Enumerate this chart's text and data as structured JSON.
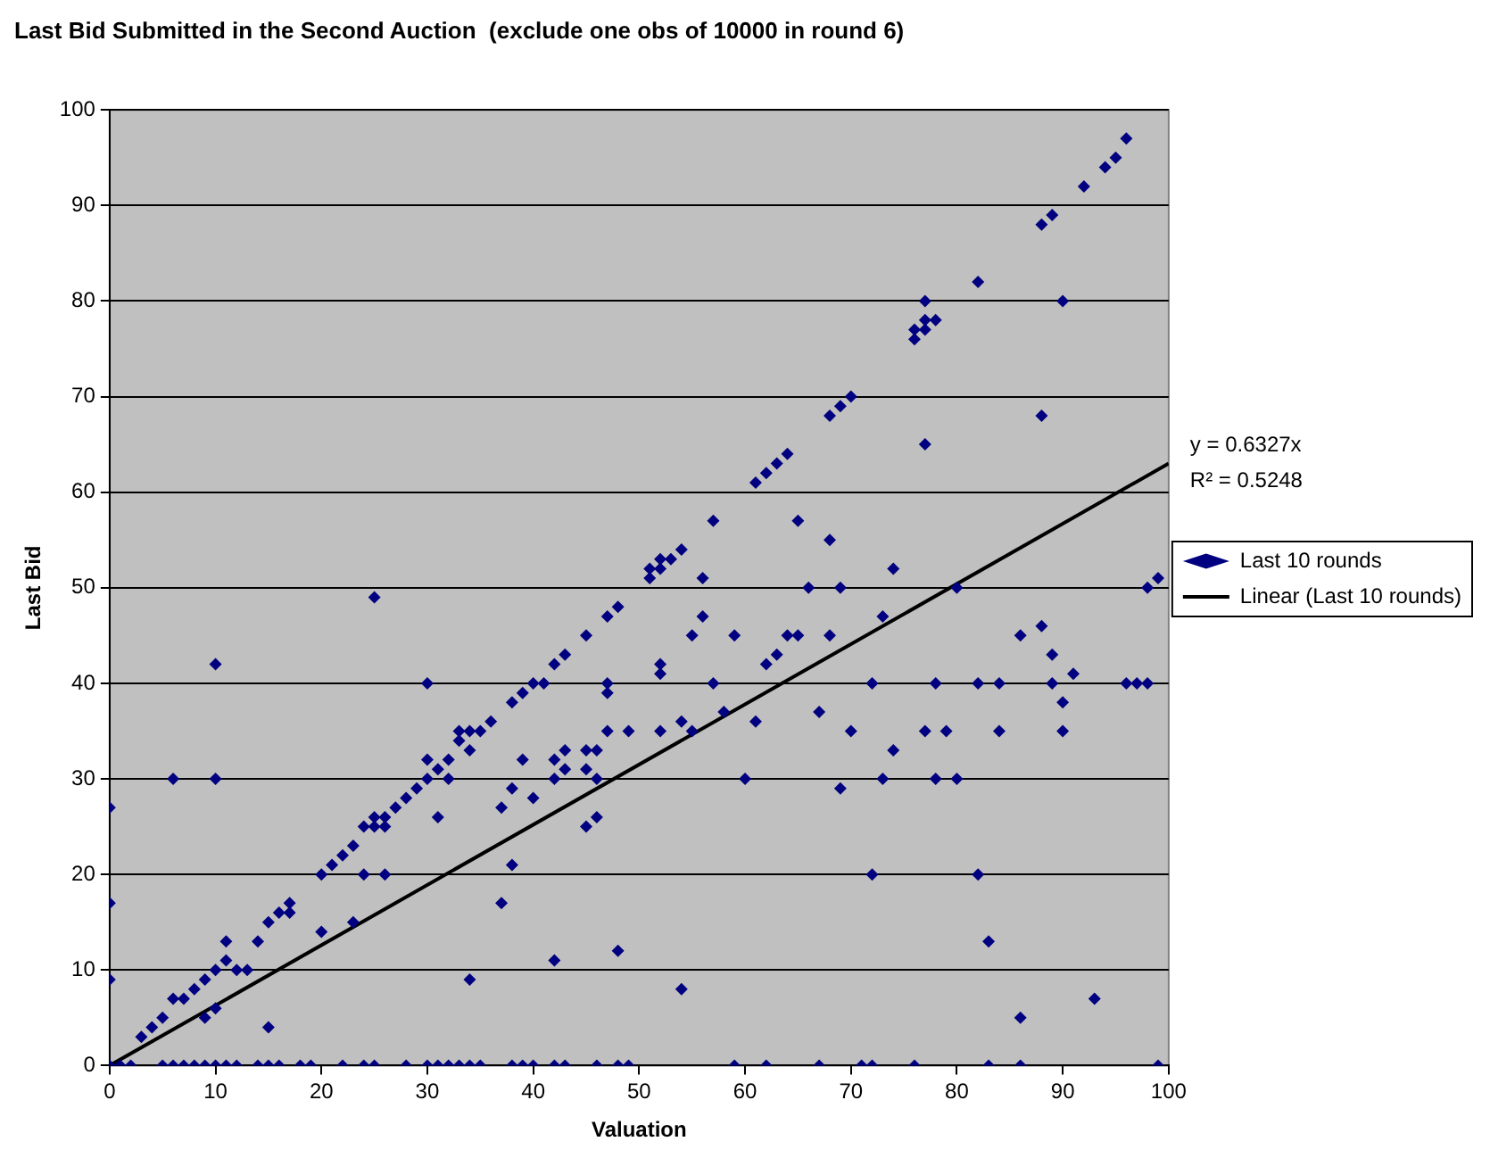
{
  "chart_data": {
    "type": "scatter",
    "title": "Last Bid Submitted in the Second Auction  (exclude one obs of 10000 in round 6)",
    "xlabel": "Valuation",
    "ylabel": "Last Bid",
    "xlim": [
      0,
      100
    ],
    "xticks": [
      0,
      10,
      20,
      30,
      40,
      50,
      60,
      70,
      80,
      90,
      100
    ],
    "ylim": [
      0,
      100
    ],
    "yticks": [
      0,
      10,
      20,
      30,
      40,
      50,
      60,
      70,
      80,
      90,
      100
    ],
    "grid": "y",
    "legend": "right",
    "annotations": [
      "y = 0.6327x",
      "R² = 0.5248"
    ],
    "series": [
      {
        "name": "Last 10 rounds",
        "color": "#000080",
        "marker": "diamond",
        "x": [
          0,
          1,
          2,
          5,
          6,
          7,
          8,
          9,
          10,
          11,
          12,
          14,
          15,
          16,
          18,
          19,
          22,
          24,
          25,
          28,
          30,
          31,
          32,
          33,
          34,
          35,
          38,
          39,
          40,
          42,
          43,
          46,
          48,
          49,
          59,
          62,
          67,
          71,
          72,
          76,
          83,
          86,
          99,
          0,
          0,
          0,
          3,
          4,
          5,
          6,
          7,
          8,
          9,
          9,
          10,
          10,
          10,
          10,
          6,
          11,
          11,
          12,
          13,
          14,
          15,
          15,
          16,
          17,
          17,
          20,
          20,
          21,
          22,
          23,
          23,
          24,
          24,
          25,
          25,
          25,
          26,
          26,
          26,
          27,
          28,
          29,
          30,
          30,
          30,
          31,
          31,
          32,
          32,
          33,
          33,
          34,
          34,
          34,
          35,
          36,
          37,
          37,
          38,
          38,
          38,
          39,
          39,
          40,
          40,
          41,
          42,
          42,
          42,
          42,
          43,
          43,
          43,
          45,
          45,
          45,
          45,
          46,
          46,
          46,
          47,
          47,
          47,
          47,
          48,
          48,
          49,
          51,
          51,
          52,
          52,
          53,
          54,
          52,
          52,
          52,
          54,
          54,
          55,
          55,
          56,
          56,
          57,
          57,
          58,
          59,
          60,
          61,
          61,
          62,
          62,
          63,
          63,
          64,
          64,
          65,
          65,
          66,
          67,
          68,
          68,
          68,
          69,
          69,
          69,
          70,
          70,
          72,
          72,
          73,
          73,
          74,
          74,
          76,
          76,
          77,
          77,
          78,
          77,
          77,
          77,
          78,
          78,
          79,
          80,
          80,
          82,
          82,
          82,
          83,
          84,
          84,
          86,
          86,
          88,
          88,
          88,
          89,
          89,
          89,
          90,
          90,
          90,
          91,
          92,
          93,
          94,
          95,
          96,
          96,
          97,
          98,
          98,
          99
        ],
        "values": [
          0,
          0,
          0,
          0,
          0,
          0,
          0,
          0,
          0,
          0,
          0,
          0,
          0,
          0,
          0,
          0,
          0,
          0,
          0,
          0,
          0,
          0,
          0,
          0,
          0,
          0,
          0,
          0,
          0,
          0,
          0,
          0,
          0,
          0,
          0,
          0,
          0,
          0,
          0,
          0,
          0,
          0,
          0,
          27,
          17,
          9,
          3,
          4,
          5,
          7,
          7,
          8,
          9,
          5,
          6,
          10,
          30,
          42,
          30,
          11,
          13,
          10,
          10,
          13,
          15,
          4,
          16,
          17,
          16,
          20,
          14,
          21,
          22,
          23,
          15,
          25,
          20,
          26,
          25,
          49,
          26,
          25,
          20,
          27,
          28,
          29,
          30,
          32,
          40,
          31,
          26,
          32,
          30,
          35,
          34,
          35,
          33,
          9,
          35,
          36,
          17,
          27,
          21,
          29,
          38,
          39,
          32,
          40,
          28,
          40,
          42,
          30,
          32,
          11,
          43,
          33,
          31,
          45,
          25,
          31,
          33,
          26,
          30,
          33,
          47,
          35,
          39,
          40,
          48,
          12,
          35,
          51,
          52,
          52,
          53,
          53,
          54,
          42,
          41,
          35,
          36,
          8,
          35,
          45,
          47,
          51,
          40,
          57,
          37,
          45,
          30,
          36,
          61,
          42,
          62,
          43,
          63,
          45,
          64,
          45,
          57,
          50,
          37,
          45,
          55,
          68,
          50,
          29,
          69,
          35,
          70,
          40,
          20,
          47,
          30,
          33,
          52,
          76,
          77,
          77,
          78,
          78,
          80,
          65,
          35,
          40,
          30,
          35,
          50,
          30,
          82,
          40,
          20,
          13,
          40,
          35,
          45,
          5,
          46,
          68,
          88,
          89,
          43,
          40,
          38,
          35,
          80,
          41,
          92,
          7,
          94,
          95,
          97,
          40,
          40,
          40,
          50,
          51
        ]
      },
      {
        "name": "Linear (Last 10 rounds)",
        "type": "line",
        "color": "#000000",
        "marker": "none",
        "x": [
          0,
          100
        ],
        "values": [
          0,
          63
        ]
      }
    ]
  }
}
